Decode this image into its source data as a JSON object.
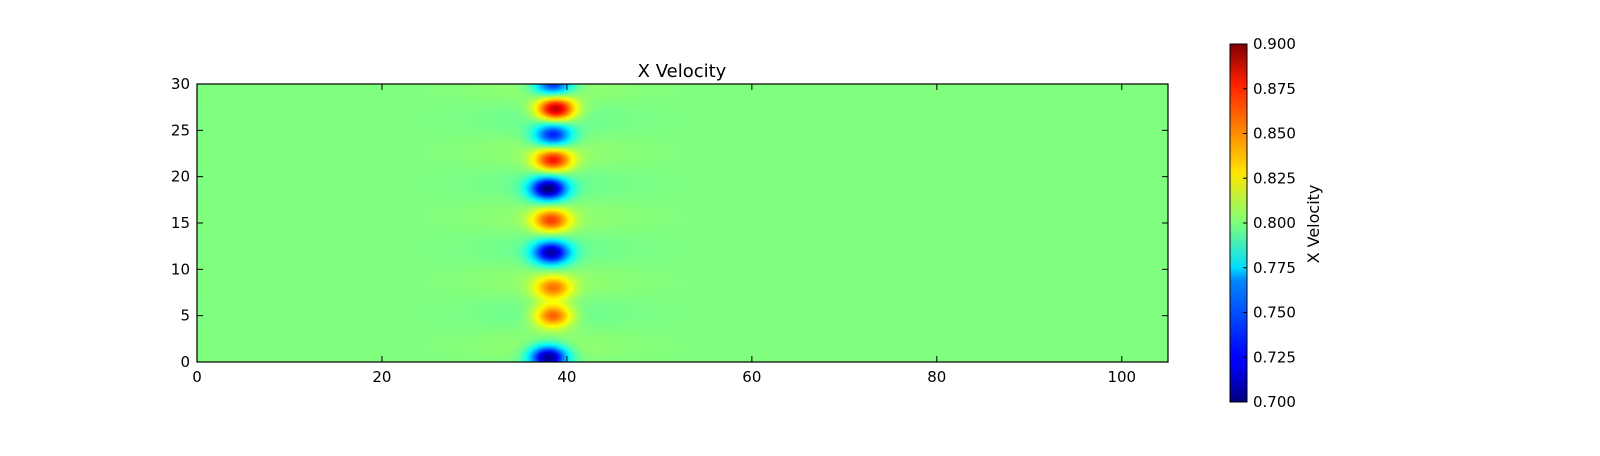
{
  "chart_data": {
    "type": "heatmap",
    "title": "X Velocity",
    "xlabel": "",
    "ylabel": "",
    "xlim": [
      0,
      105
    ],
    "ylim": [
      0,
      30
    ],
    "x_ticks": [
      0,
      20,
      40,
      60,
      80,
      100
    ],
    "y_ticks": [
      0,
      5,
      10,
      15,
      20,
      25,
      30
    ],
    "colormap": "jet",
    "colorbar": {
      "label": "X Velocity",
      "range": [
        0.7,
        0.9
      ],
      "ticks": [
        "0.700",
        "0.725",
        "0.750",
        "0.775",
        "0.800",
        "0.825",
        "0.850",
        "0.875",
        "0.900"
      ]
    },
    "background_value": 0.8,
    "band_center_x": 38.5,
    "features": [
      {
        "x": 38.0,
        "y": 0.5,
        "value": 0.7
      },
      {
        "x": 38.5,
        "y": 5.0,
        "value": 0.86
      },
      {
        "x": 38.5,
        "y": 8.0,
        "value": 0.85
      },
      {
        "x": 38.3,
        "y": 11.8,
        "value": 0.71
      },
      {
        "x": 38.3,
        "y": 15.3,
        "value": 0.86
      },
      {
        "x": 38.0,
        "y": 18.7,
        "value": 0.7
      },
      {
        "x": 38.5,
        "y": 21.8,
        "value": 0.87
      },
      {
        "x": 38.5,
        "y": 24.5,
        "value": 0.73
      },
      {
        "x": 38.8,
        "y": 27.3,
        "value": 0.89
      },
      {
        "x": 38.5,
        "y": 30.0,
        "value": 0.73
      }
    ]
  }
}
